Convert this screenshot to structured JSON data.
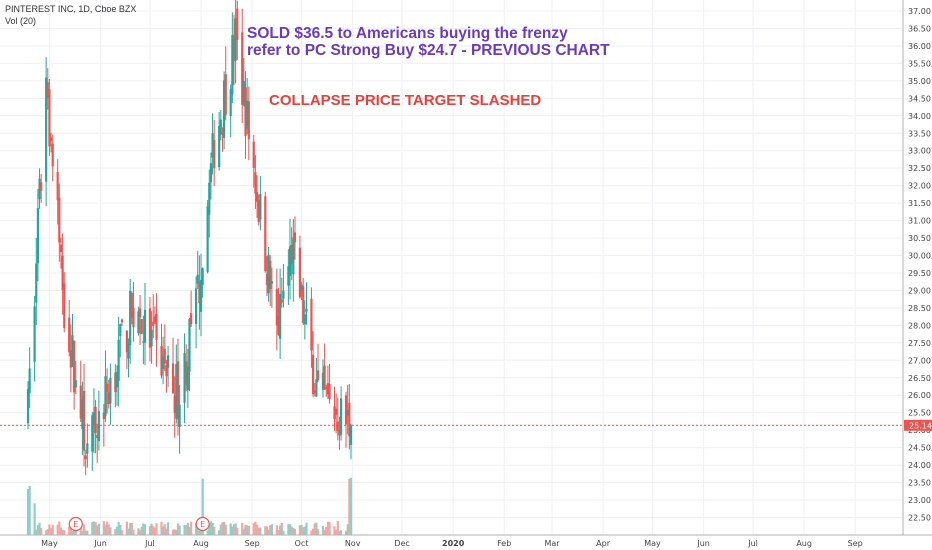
{
  "header": {
    "title": "PINTEREST INC, 1D, Cboe BZX",
    "volume": "Vol (20)"
  },
  "annotations": {
    "sold_line1": "SOLD $36.5 to Americans buying the frenzy",
    "sold_line2": "refer to PC Strong Buy $24.7 - PREVIOUS CHART",
    "collapse": "COLLAPSE PRICE TARGET SLASHED"
  },
  "colors": {
    "up": "#26a69a",
    "down": "#ef5350",
    "up_vol": "#8fd0c6",
    "down_vol": "#f3a7a4",
    "annotation_purple": "#6a3bbd",
    "annotation_red": "#e8403a",
    "price_label_bg": "#ef5350"
  },
  "chart_data": {
    "type": "candlestick",
    "ylim": [
      22.4,
      37.2
    ],
    "y_ticks": [
      "22.50",
      "23.00",
      "23.50",
      "24.00",
      "24.50",
      "25.00",
      "25.50",
      "26.00",
      "26.50",
      "27.00",
      "27.50",
      "28.00",
      "28.50",
      "29.00",
      "29.50",
      "30.00",
      "30.50",
      "31.00",
      "31.50",
      "32.00",
      "32.50",
      "33.00",
      "33.50",
      "34.00",
      "34.50",
      "35.00",
      "35.50",
      "36.00",
      "36.50",
      "37.00"
    ],
    "x_ticks": [
      {
        "label": "May",
        "date": "2019-05-01"
      },
      {
        "label": "Jun",
        "date": "2019-06-01"
      },
      {
        "label": "Jul",
        "date": "2019-07-01"
      },
      {
        "label": "Aug",
        "date": "2019-08-01"
      },
      {
        "label": "Sep",
        "date": "2019-09-01"
      },
      {
        "label": "Oct",
        "date": "2019-10-01"
      },
      {
        "label": "Nov",
        "date": "2019-11-01"
      },
      {
        "label": "Dec",
        "date": "2019-12-01"
      },
      {
        "label": "2020",
        "date": "2020-01-01",
        "bold": true
      },
      {
        "label": "Feb",
        "date": "2020-02-01"
      },
      {
        "label": "Mar",
        "date": "2020-03-01"
      },
      {
        "label": "Apr",
        "date": "2020-04-01"
      },
      {
        "label": "May",
        "date": "2020-05-01"
      },
      {
        "label": "Jun",
        "date": "2020-06-01"
      },
      {
        "label": "Jul",
        "date": "2020-07-01"
      },
      {
        "label": "Aug",
        "date": "2020-08-01"
      },
      {
        "label": "Sep",
        "date": "2020-09-01"
      }
    ],
    "last_price": 25.14,
    "last_price_label": "25.14",
    "earnings_markers": [
      {
        "date": "2019-05-17",
        "label": "E"
      },
      {
        "date": "2019-08-02",
        "label": "E"
      }
    ],
    "key_points": [
      {
        "date": "2019-04-18",
        "close": 25.5
      },
      {
        "date": "2019-04-29",
        "close": 35.0
      },
      {
        "date": "2019-05-10",
        "close": 28.6
      },
      {
        "date": "2019-05-24",
        "close": 24.3
      },
      {
        "date": "2019-06-21",
        "close": 28.5
      },
      {
        "date": "2019-07-19",
        "close": 26.0
      },
      {
        "date": "2019-07-30",
        "close": 28.8
      },
      {
        "date": "2019-08-09",
        "close": 33.2
      },
      {
        "date": "2019-08-22",
        "close": 36.2
      },
      {
        "date": "2019-09-16",
        "close": 27.8
      },
      {
        "date": "2019-09-25",
        "close": 30.2
      },
      {
        "date": "2019-10-11",
        "close": 26.0
      },
      {
        "date": "2019-10-31",
        "close": 25.14
      }
    ]
  }
}
